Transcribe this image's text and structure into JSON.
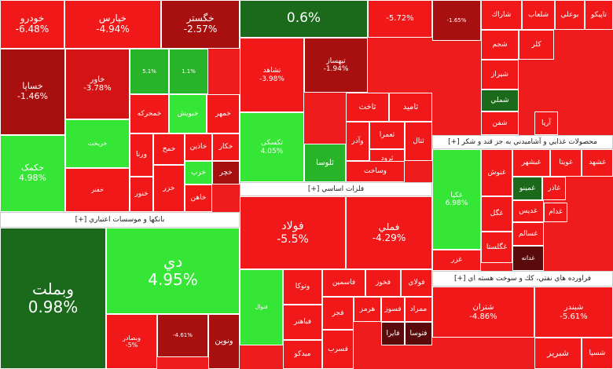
{
  "sectors": [
    {
      "tiles": [
        {
          "name": "خودرو",
          "change": "-6.48%"
        },
        {
          "name": "خپارس",
          "change": "-4.94%"
        },
        {
          "name": "خگستر",
          "change": "-2.57%"
        },
        {
          "name": "خساپا",
          "change": "-1.46%"
        },
        {
          "name": "حکمک",
          "change": "4.98%"
        },
        {
          "name": "خاور",
          "change": "-3.78%"
        },
        {
          "name": "خریخت"
        },
        {
          "name": "خفنر"
        },
        {
          "change": "5.1%"
        },
        {
          "change": "1.1%"
        },
        {
          "name": "خمحرکه"
        },
        {
          "name": "خبويش"
        },
        {
          "name": "خمهر"
        },
        {
          "name": "ورنا"
        },
        {
          "name": "خمح"
        },
        {
          "name": "خاذين"
        },
        {
          "name": "خكار"
        },
        {
          "name": "خزر"
        },
        {
          "name": "خنور"
        },
        {
          "name": "خرپ"
        },
        {
          "name": "خچر"
        },
        {
          "name": "خاهن"
        }
      ]
    },
    {
      "title": "بانکها و موسسات اعتباري [+]",
      "tiles": [
        {
          "name": "وبملت",
          "change": "0.98%"
        },
        {
          "name": "دي",
          "change": "4.95%"
        },
        {
          "name": "وبصادر",
          "change": "-5%"
        },
        {
          "change": "-4.61%"
        },
        {
          "name": "ونوين"
        }
      ]
    },
    {
      "tiles": [
        {
          "change": "0.6%"
        },
        {
          "change": "-5.72%"
        },
        {
          "name": "تشاهد",
          "change": "-3.98%"
        },
        {
          "name": "تيهساز",
          "change": "-1.94%"
        },
        {
          "name": "تکسکی",
          "change": "4.05%"
        },
        {
          "name": "ثلوسا"
        },
        {
          "name": "ثاخت"
        },
        {
          "name": "ثاميد"
        },
        {
          "name": "وآذر"
        },
        {
          "name": "ثعمرا"
        },
        {
          "name": "ثتال"
        },
        {
          "name": "ثرود"
        },
        {
          "name": "وساخت"
        }
      ]
    },
    {
      "title": "فلزات اساسي [+]",
      "tiles": [
        {
          "name": "فولاد",
          "change": "-5.5%"
        },
        {
          "name": "فملي",
          "change": "-4.29%"
        },
        {
          "name": "فنوال"
        },
        {
          "name": "وتوکا"
        },
        {
          "name": "فاسمين"
        },
        {
          "name": "فخوز"
        },
        {
          "name": "فولاي"
        },
        {
          "name": "فباهنر"
        },
        {
          "name": "فجر"
        },
        {
          "name": "هرمز"
        },
        {
          "name": "فسوز"
        },
        {
          "name": "ممراد"
        },
        {
          "name": "ميدکو"
        },
        {
          "name": "فسرب"
        },
        {
          "name": "فايرا"
        },
        {
          "name": "فتوسا"
        }
      ]
    },
    {
      "tiles": [
        {
          "change": "-1.65%"
        },
        {
          "name": "شاراك"
        },
        {
          "name": "شلعاب"
        },
        {
          "name": "بوعلي"
        },
        {
          "name": "تاپيكو"
        },
        {
          "name": "شجم"
        },
        {
          "name": "کلر"
        },
        {
          "name": "شيراز"
        },
        {
          "name": "شملي"
        },
        {
          "name": "شفن"
        },
        {
          "name": "آريا"
        }
      ]
    },
    {
      "title": "محصولات غذايي و آشاميدني به جز قند و شکر [+]",
      "tiles": [
        {
          "name": "غکیا",
          "change": "6.98%"
        },
        {
          "name": "غنوش"
        },
        {
          "name": "غبشهر"
        },
        {
          "name": "غويتا"
        },
        {
          "name": "غشهد"
        },
        {
          "name": "غمينو"
        },
        {
          "name": "غاذر"
        },
        {
          "name": "غگل"
        },
        {
          "name": "غديس"
        },
        {
          "name": "غدام"
        },
        {
          "name": "غسالم"
        },
        {
          "name": "غگلستا"
        },
        {
          "name": "غدانه"
        },
        {
          "name": "غزر"
        }
      ]
    },
    {
      "title": "فراورده هاي نفتي، كك و سوخت هسته اي [+]",
      "tiles": [
        {
          "name": "شتران",
          "change": "-4.86%"
        },
        {
          "name": "شبندر",
          "change": "-5.61%"
        },
        {
          "name": "شبريز"
        },
        {
          "name": "شسپا"
        }
      ]
    }
  ]
}
